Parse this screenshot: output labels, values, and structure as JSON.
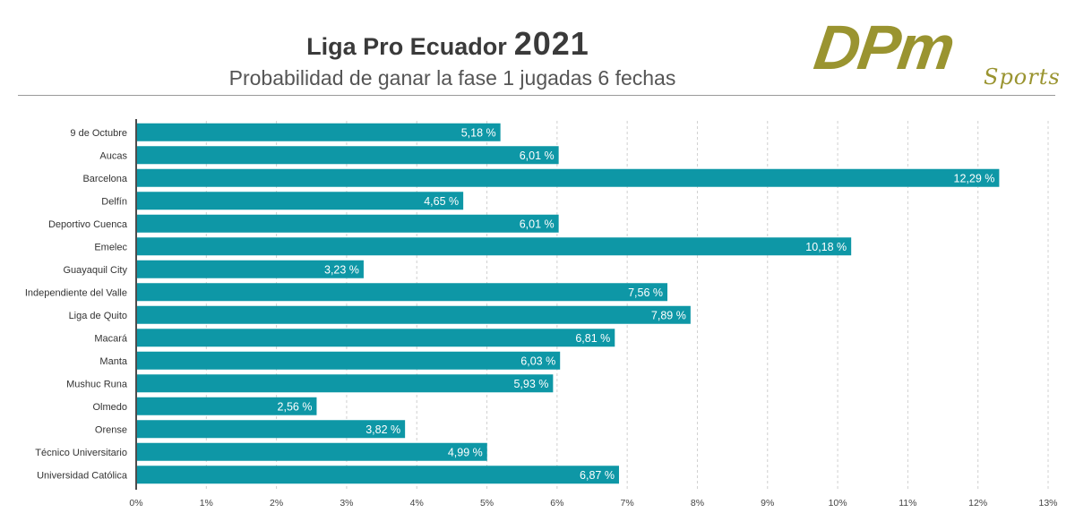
{
  "header": {
    "title": "Liga Pro Ecuador",
    "title_year": "2021",
    "subtitle": "Probabilidad de ganar la fase 1 jugadas 6 fechas"
  },
  "logo": {
    "mark": "DPm",
    "tagline": "Sports",
    "color": "#9a9430"
  },
  "chart_data": {
    "type": "bar",
    "orientation": "horizontal",
    "title": "Liga Pro Ecuador 2021",
    "subtitle": "Probabilidad de ganar la fase 1 jugadas 6 fechas",
    "xlabel": "",
    "ylabel": "",
    "categories": [
      "9 de Octubre",
      "Aucas",
      "Barcelona",
      "Delfín",
      "Deportivo Cuenca",
      "Emelec",
      "Guayaquil City",
      "Independiente del Valle",
      "Liga de Quito",
      "Macará",
      "Manta",
      "Mushuc Runa",
      "Olmedo",
      "Orense",
      "Técnico Universitario",
      "Universidad Católica"
    ],
    "values": [
      5.18,
      6.01,
      12.29,
      4.65,
      6.01,
      10.18,
      3.23,
      7.56,
      7.89,
      6.81,
      6.03,
      5.93,
      2.56,
      3.82,
      4.99,
      6.87
    ],
    "value_labels": [
      "5,18 %",
      "6,01 %",
      "12,29 %",
      "4,65 %",
      "6,01 %",
      "10,18 %",
      "3,23 %",
      "7,56 %",
      "7,89 %",
      "6,81 %",
      "6,03 %",
      "5,93 %",
      "2,56 %",
      "3,82 %",
      "4,99 %",
      "6,87 %"
    ],
    "xlim": [
      0,
      13
    ],
    "xticks": [
      "0%",
      "1%",
      "2%",
      "3%",
      "4%",
      "5%",
      "6%",
      "7%",
      "8%",
      "9%",
      "10%",
      "11%",
      "12%",
      "13%"
    ],
    "grid": "vertical dashed",
    "bar_color": "#0e97a6"
  }
}
